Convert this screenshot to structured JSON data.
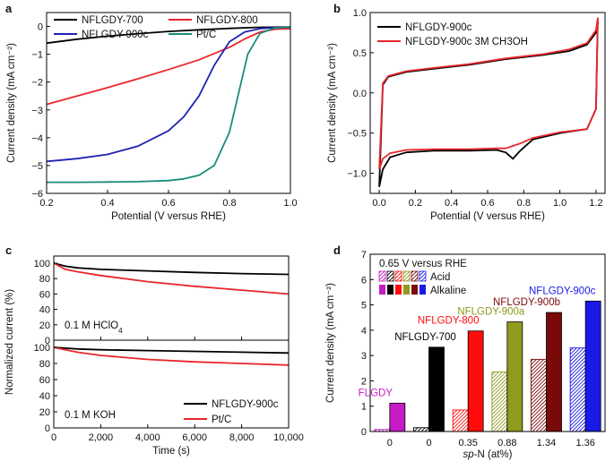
{
  "chart_data": [
    {
      "panel": "a",
      "type": "line",
      "xlabel": "Potential (V versus RHE)",
      "ylabel": "Current density (mA cm⁻²)",
      "xlim": [
        0.2,
        1.0
      ],
      "ylim": [
        -6,
        0.5
      ],
      "xticks": [
        0.2,
        0.4,
        0.6,
        0.8,
        1.0
      ],
      "xticklabels": [
        "0.2",
        "0.4",
        "0.6",
        "0.8",
        "1.0"
      ],
      "yticks": [
        -6,
        -5,
        -4,
        -3,
        -2,
        -1,
        0
      ],
      "yticklabels": [
        "−6",
        "−5",
        "−4",
        "−3",
        "−2",
        "−1",
        "0"
      ],
      "legend": "top",
      "series": [
        {
          "name": "NFLGDY-700",
          "color": "#000000",
          "x": [
            0.2,
            0.3,
            0.4,
            0.5,
            0.6,
            0.7,
            0.8,
            0.9,
            1.0
          ],
          "y": [
            -0.6,
            -0.46,
            -0.35,
            -0.26,
            -0.18,
            -0.12,
            -0.07,
            -0.03,
            -0.02
          ]
        },
        {
          "name": "NFLGDY-800",
          "color": "#e8262b",
          "x": [
            0.2,
            0.3,
            0.4,
            0.5,
            0.6,
            0.7,
            0.8,
            0.85,
            0.9,
            0.95,
            1.0
          ],
          "y": [
            -2.8,
            -2.5,
            -2.2,
            -1.88,
            -1.55,
            -1.2,
            -0.75,
            -0.45,
            -0.2,
            -0.1,
            -0.08
          ]
        },
        {
          "name": "NFLGDY-900c",
          "color": "#1e22b4",
          "x": [
            0.2,
            0.3,
            0.4,
            0.5,
            0.6,
            0.65,
            0.7,
            0.75,
            0.8,
            0.85,
            0.9,
            0.95,
            1.0
          ],
          "y": [
            -4.85,
            -4.75,
            -4.6,
            -4.3,
            -3.75,
            -3.25,
            -2.5,
            -1.4,
            -0.55,
            -0.2,
            -0.08,
            -0.04,
            -0.03
          ]
        },
        {
          "name": "Pt/C",
          "color": "#1a8c7a",
          "x": [
            0.2,
            0.3,
            0.4,
            0.5,
            0.6,
            0.65,
            0.7,
            0.75,
            0.8,
            0.83,
            0.86,
            0.9,
            0.95,
            1.0
          ],
          "y": [
            -5.6,
            -5.6,
            -5.59,
            -5.58,
            -5.54,
            -5.48,
            -5.35,
            -5.0,
            -3.8,
            -2.4,
            -1.0,
            -0.25,
            -0.05,
            -0.02
          ]
        }
      ]
    },
    {
      "panel": "b",
      "type": "line",
      "xlabel": "Potential (V versus RHE)",
      "ylabel": "Current density (mA cm⁻²)",
      "xlim": [
        -0.05,
        1.25
      ],
      "ylim": [
        -1.25,
        1.0
      ],
      "xticks": [
        0.0,
        0.2,
        0.4,
        0.6,
        0.8,
        1.0,
        1.2
      ],
      "xticklabels": [
        "0.0",
        "0.2",
        "0.4",
        "0.6",
        "0.8",
        "1.0",
        "1.2"
      ],
      "yticks": [
        -1.0,
        -0.5,
        0.0,
        0.5,
        1.0
      ],
      "yticklabels": [
        "−1.0",
        "−0.5",
        "0.0",
        "0.5",
        "1.0"
      ],
      "legend": "top-left",
      "series": [
        {
          "name": "NFLGDY-900c",
          "color": "#000000",
          "x": [
            0.0,
            0.02,
            0.06,
            0.15,
            0.3,
            0.5,
            0.65,
            0.7,
            0.74,
            0.78,
            0.85,
            1.0,
            1.15,
            1.2,
            1.21,
            1.2,
            1.15,
            1.05,
            0.9,
            0.7,
            0.5,
            0.3,
            0.15,
            0.05,
            0.02,
            0.0
          ],
          "y": [
            -1.17,
            -0.95,
            -0.8,
            -0.74,
            -0.72,
            -0.72,
            -0.71,
            -0.74,
            -0.82,
            -0.72,
            -0.58,
            -0.5,
            -0.45,
            -0.2,
            0.9,
            0.75,
            0.6,
            0.52,
            0.47,
            0.42,
            0.35,
            0.3,
            0.26,
            0.2,
            0.1,
            -1.17
          ]
        },
        {
          "name": "NFLGDY-900c 3M CH3OH",
          "color": "#e8262b",
          "x": [
            0.0,
            0.02,
            0.06,
            0.15,
            0.3,
            0.5,
            0.65,
            0.7,
            0.74,
            0.78,
            0.85,
            1.0,
            1.15,
            1.2,
            1.21,
            1.2,
            1.15,
            1.05,
            0.9,
            0.7,
            0.5,
            0.3,
            0.15,
            0.05,
            0.02,
            0.0
          ],
          "y": [
            -0.95,
            -0.82,
            -0.75,
            -0.71,
            -0.7,
            -0.7,
            -0.69,
            -0.69,
            -0.66,
            -0.63,
            -0.56,
            -0.49,
            -0.45,
            -0.2,
            0.93,
            0.78,
            0.62,
            0.54,
            0.48,
            0.43,
            0.36,
            0.31,
            0.27,
            0.21,
            0.12,
            -0.95
          ]
        }
      ]
    },
    {
      "panel": "c",
      "type": "line",
      "xlabel": "Time (s)",
      "ylabel": "Normalized current (%)",
      "xlim": [
        0,
        10000
      ],
      "xticks": [
        0,
        2000,
        4000,
        6000,
        8000,
        10000
      ],
      "xticklabels": [
        "0",
        "2,000",
        "4,000",
        "6,000",
        "8,000",
        "10,000"
      ],
      "legend": "bottom-right",
      "subplots": [
        {
          "annotation": "0.1 M HClO",
          "annotation_sub": "4",
          "ylim": [
            0,
            100
          ],
          "yticks": [
            0,
            20,
            40,
            60,
            80,
            100
          ],
          "yticklabels": [
            "0",
            "20",
            "40",
            "60",
            "80",
            "100"
          ],
          "series": [
            {
              "name": "NFLGDY-900c",
              "color": "#000000",
              "x": [
                0,
                500,
                1000,
                2000,
                4000,
                6000,
                8000,
                10000
              ],
              "y": [
                100,
                96,
                94,
                92,
                90,
                88,
                86.5,
                85.5
              ]
            },
            {
              "name": "Pt/C",
              "color": "#e8262b",
              "x": [
                0,
                500,
                1000,
                2000,
                4000,
                6000,
                8000,
                10000
              ],
              "y": [
                100,
                92,
                89,
                84,
                76,
                70,
                65,
                60
              ]
            }
          ]
        },
        {
          "annotation": "0.1 M KOH",
          "ylim": [
            0,
            100
          ],
          "yticks": [
            0,
            20,
            40,
            60,
            80,
            100
          ],
          "yticklabels": [
            "0",
            "20",
            "40",
            "60",
            "80",
            "100"
          ],
          "series": [
            {
              "name": "NFLGDY-900c",
              "color": "#000000",
              "x": [
                0,
                500,
                1000,
                2000,
                4000,
                6000,
                8000,
                10000
              ],
              "y": [
                100,
                99,
                98,
                97,
                96,
                95,
                94,
                93
              ]
            },
            {
              "name": "Pt/C",
              "color": "#e8262b",
              "x": [
                0,
                500,
                1000,
                2000,
                4000,
                6000,
                8000,
                10000
              ],
              "y": [
                100,
                97,
                94,
                90,
                85,
                82,
                80,
                78
              ]
            }
          ]
        }
      ]
    },
    {
      "panel": "d",
      "type": "bar",
      "ylabel": "Current density (mA cm⁻²)",
      "xlabel_italic": "sp",
      "xlabel_rest": "-N (at%)",
      "ylim": [
        0,
        7
      ],
      "yticks": [
        0,
        1,
        2,
        3,
        4,
        5,
        6,
        7
      ],
      "yticklabels": [
        "0",
        "1",
        "2",
        "3",
        "4",
        "5",
        "6",
        "7"
      ],
      "categories": [
        "FLGDY",
        "NFLGDY-700",
        "NFLGDY-800",
        "NFLGDY-900a",
        "NFLGDY-900b",
        "NFLGDY-900c"
      ],
      "xticklabels": [
        "0",
        "0",
        "0.35",
        "0.88",
        "1.34",
        "1.36"
      ],
      "colors": [
        "#c61cc6",
        "#000000",
        "#ff0d0d",
        "#8f9a1e",
        "#7a0a0a",
        "#1a1ae6"
      ],
      "series": [
        {
          "name": "Acid",
          "values": [
            0.08,
            0.15,
            0.85,
            2.35,
            2.85,
            3.3
          ]
        },
        {
          "name": "Alkaline",
          "values": [
            1.12,
            3.33,
            3.97,
            4.33,
            4.7,
            5.15
          ]
        }
      ],
      "legend_title": "0.65 V versus RHE",
      "legend": "top-left"
    }
  ]
}
